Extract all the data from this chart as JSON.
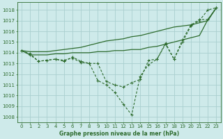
{
  "title": "Graphe pression niveau de la mer (hPa)",
  "background_color": "#ceeaea",
  "grid_color": "#aacfcf",
  "line_color": "#2d6b2d",
  "xlim": [
    -0.5,
    23.5
  ],
  "ylim": [
    1007.5,
    1018.7
  ],
  "yticks": [
    1008,
    1009,
    1010,
    1011,
    1012,
    1013,
    1014,
    1015,
    1016,
    1017,
    1018
  ],
  "xticks": [
    0,
    1,
    2,
    3,
    4,
    5,
    6,
    7,
    8,
    9,
    10,
    11,
    12,
    13,
    14,
    15,
    16,
    17,
    18,
    19,
    20,
    21,
    22,
    23
  ],
  "series_solid_top": [
    1014.2,
    1014.1,
    1014.1,
    1014.1,
    1014.2,
    1014.3,
    1014.4,
    1014.5,
    1014.7,
    1014.9,
    1015.1,
    1015.2,
    1015.3,
    1015.5,
    1015.6,
    1015.8,
    1016.0,
    1016.2,
    1016.4,
    1016.5,
    1016.6,
    1016.8,
    1017.0,
    1018.2
  ],
  "series_solid_bottom": [
    1014.2,
    1013.8,
    1013.8,
    1013.8,
    1013.9,
    1013.9,
    1014.0,
    1014.0,
    1014.0,
    1014.1,
    1014.1,
    1014.2,
    1014.2,
    1014.3,
    1014.3,
    1014.5,
    1014.6,
    1014.8,
    1015.0,
    1015.2,
    1015.4,
    1015.6,
    1017.1,
    1018.2
  ],
  "series_dashed_deep": [
    1014.2,
    1013.9,
    1013.2,
    1013.3,
    1013.4,
    1013.3,
    1013.5,
    1013.1,
    1013.0,
    1011.4,
    1011.0,
    1010.3,
    1009.2,
    1008.2,
    1011.8,
    1012.9,
    1013.4,
    1014.8,
    1013.4,
    1015.0,
    1016.5,
    1017.0,
    1018.0,
    1018.2
  ],
  "series_dashed_mid": [
    1014.2,
    1013.8,
    1013.2,
    1013.3,
    1013.4,
    1013.2,
    1013.6,
    1013.2,
    1013.0,
    1013.0,
    1011.3,
    1011.0,
    1010.8,
    1011.2,
    1011.5,
    1013.3,
    1013.4,
    1014.9,
    1013.4,
    1015.2,
    1016.6,
    1017.1,
    1017.1,
    1018.2
  ]
}
